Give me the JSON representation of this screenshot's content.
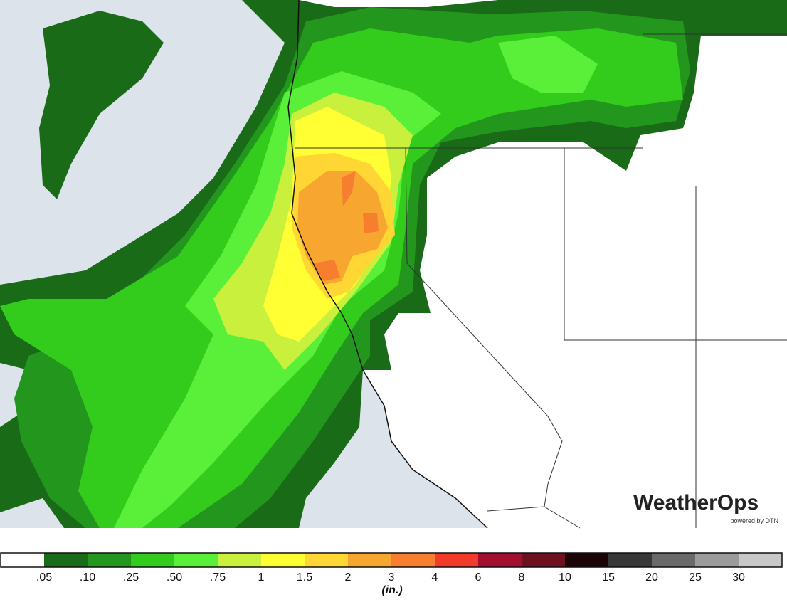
{
  "logo": {
    "brand": "WeatherOps",
    "tagline": "powered by DTN"
  },
  "legend": {
    "colors": [
      "#ffffff",
      "#1a6b17",
      "#23961d",
      "#34cc1c",
      "#5af03a",
      "#c8f03c",
      "#ffff33",
      "#ffd633",
      "#f7a630",
      "#f77d2f",
      "#f23b2a",
      "#a30f30",
      "#6f1020",
      "#1c0506",
      "#383838",
      "#6a6a6a",
      "#9b9b9b",
      "#c8c8c8"
    ],
    "labels": [
      ".05",
      ".10",
      ".25",
      ".50",
      ".75",
      "1",
      "1.5",
      "2",
      "3",
      "4",
      "6",
      "8",
      "10",
      "15",
      "20",
      "25",
      "30"
    ],
    "unit": "(in.)"
  }
}
